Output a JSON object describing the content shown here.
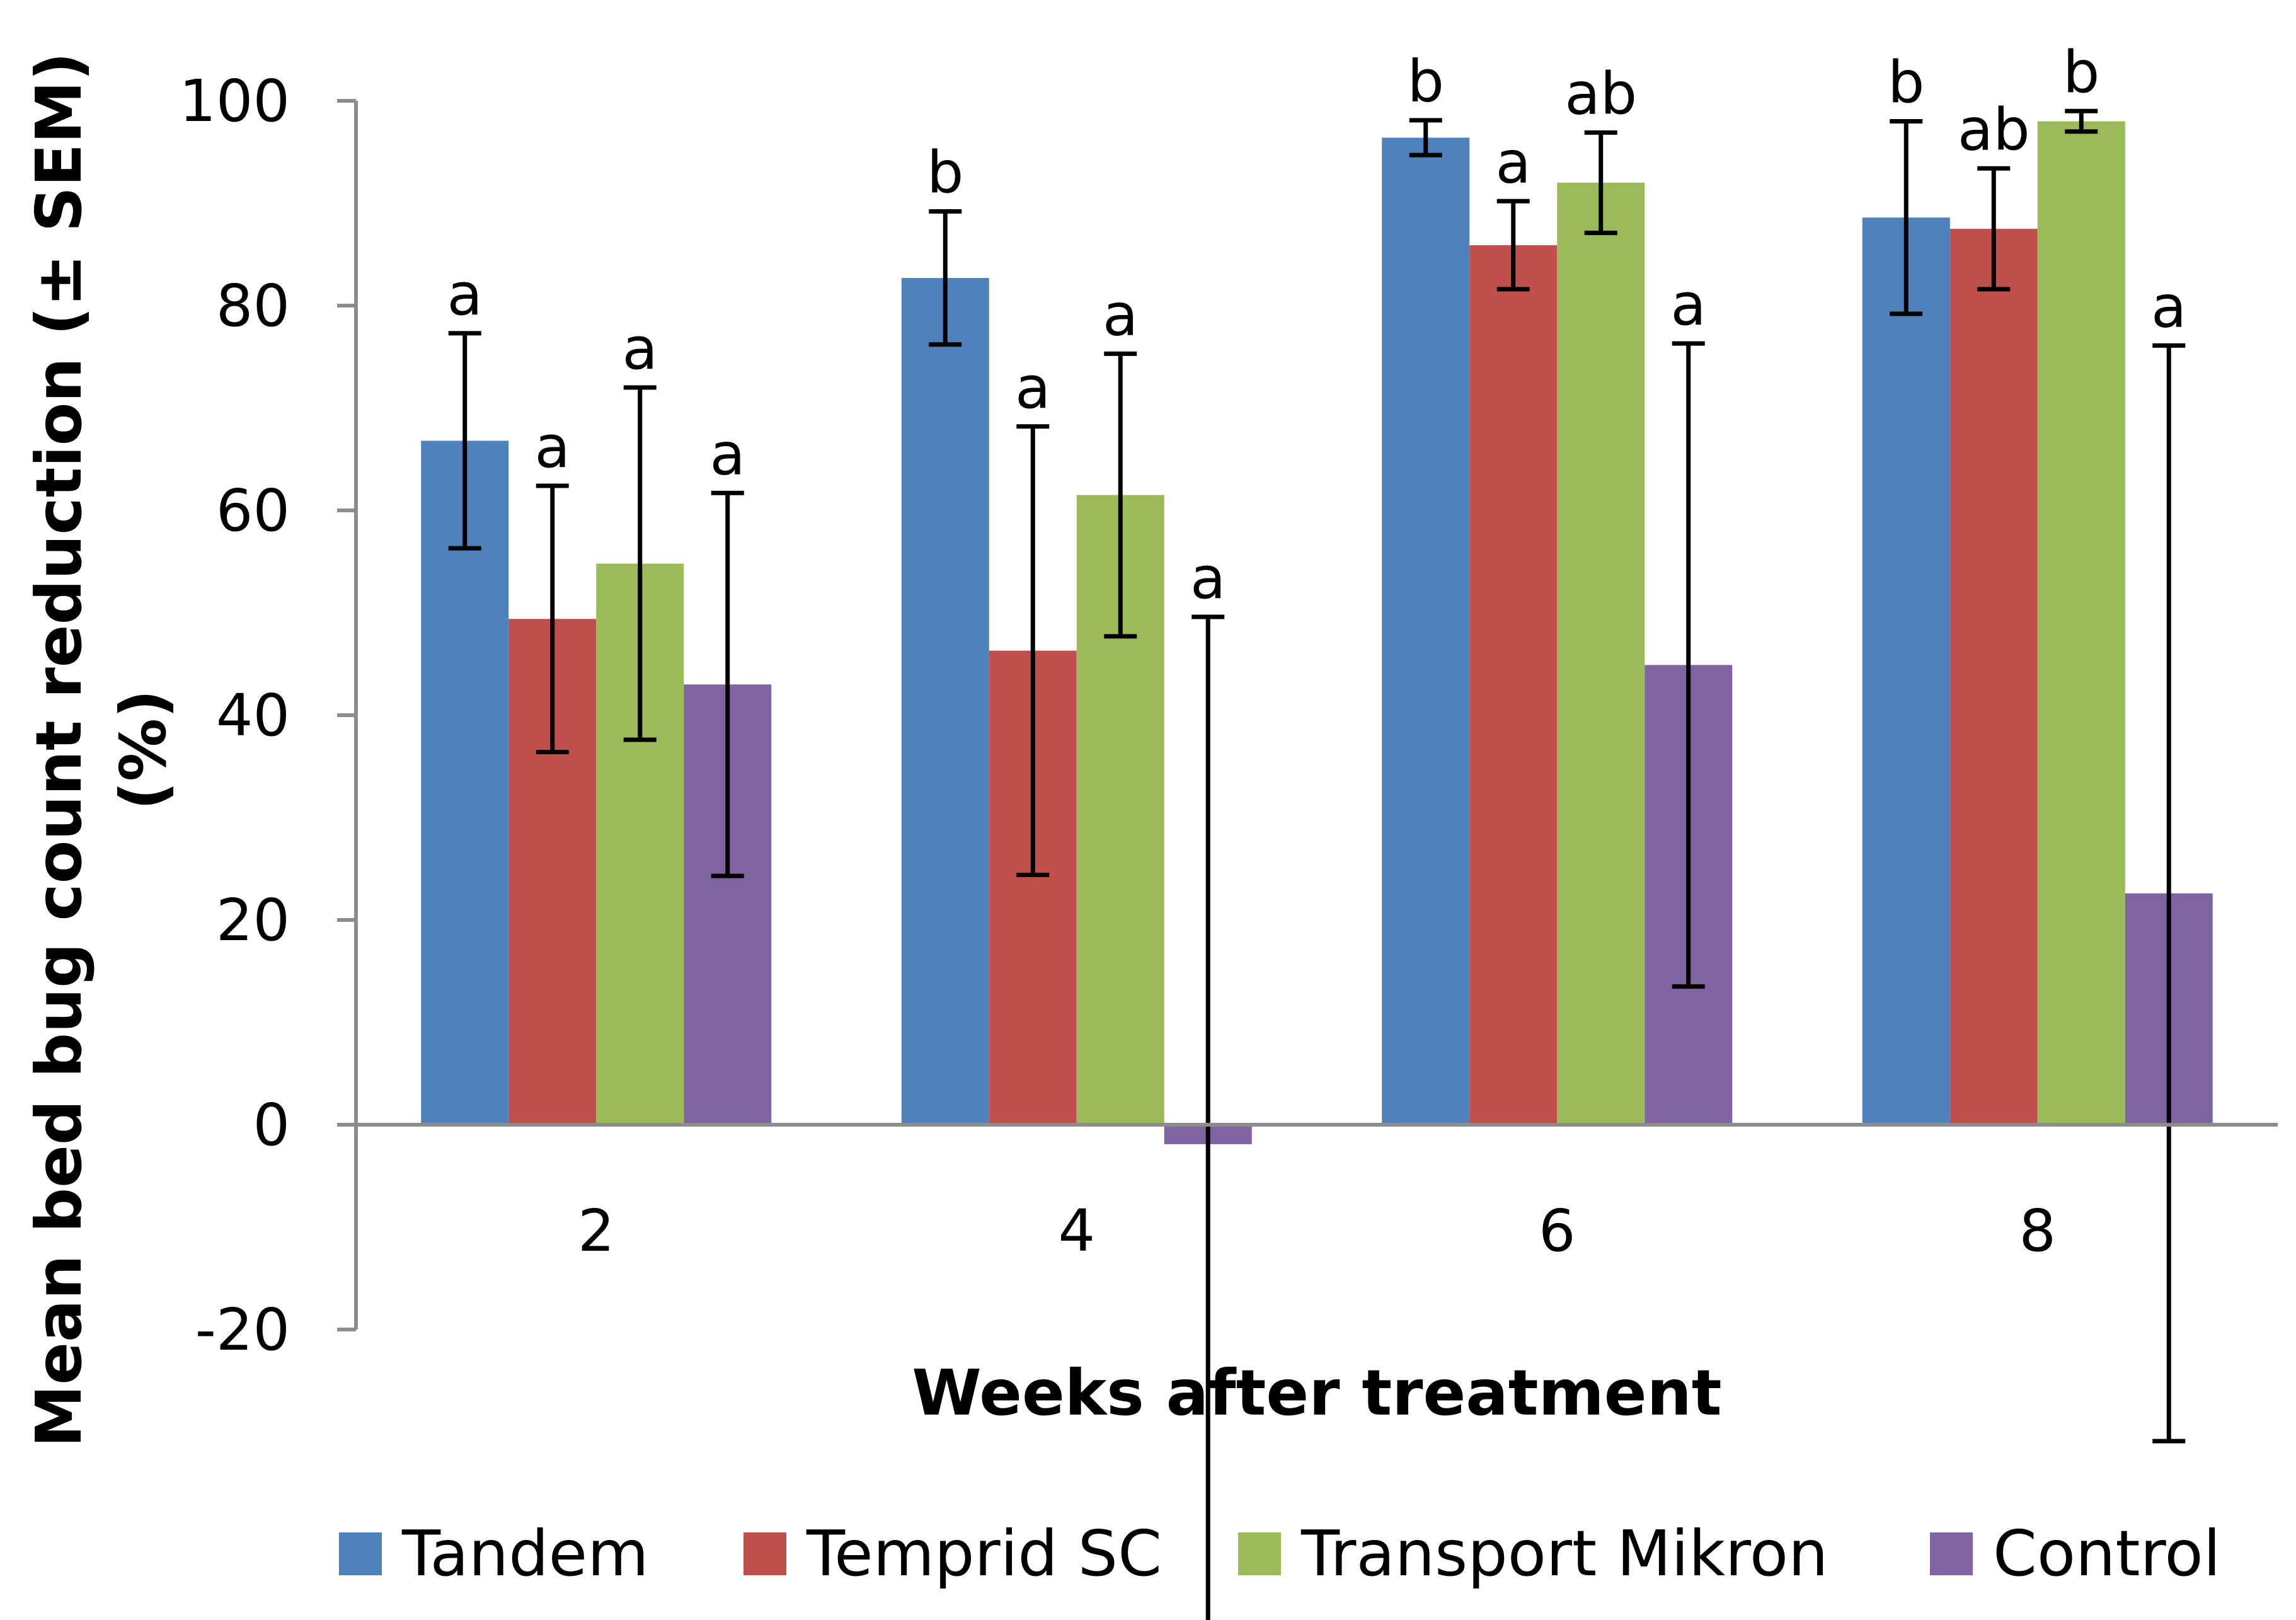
{
  "chart_data": {
    "type": "bar",
    "title": "",
    "xlabel": "Weeks after treatment",
    "ylabel": "Mean bed bug count  reduction (± SEM) (%)",
    "ylabel_lines": [
      "Mean bed bug count  reduction (± SEM)",
      "(%)"
    ],
    "ylim": [
      -20,
      100
    ],
    "yticks": [
      -20,
      0,
      20,
      40,
      60,
      80,
      100
    ],
    "ytick_labels": [
      "-20",
      "0",
      "20",
      "40",
      "60",
      "80",
      "100"
    ],
    "categories": [
      "2",
      "4",
      "6",
      "8"
    ],
    "grid": false,
    "legend_position": "bottom",
    "series": [
      {
        "name": "Tandem",
        "color": "#4f81bd",
        "values": [
          66.8,
          82.7,
          96.4,
          88.6
        ],
        "error": [
          10.5,
          6.5,
          1.7,
          9.4
        ],
        "labels": [
          "a",
          "b",
          "b",
          "b"
        ]
      },
      {
        "name": "Temprid SC",
        "color": "#c0504d",
        "values": [
          49.4,
          46.3,
          85.9,
          87.5
        ],
        "error": [
          13.0,
          21.9,
          4.3,
          5.9
        ],
        "labels": [
          "a",
          "a",
          "a",
          "ab"
        ]
      },
      {
        "name": "Transport Mikron",
        "color": "#9bbb59",
        "values": [
          54.8,
          61.5,
          92.0,
          98.0
        ],
        "error": [
          17.2,
          13.8,
          4.9,
          1.0
        ],
        "labels": [
          "a",
          "a",
          "ab",
          "b"
        ]
      },
      {
        "name": "Control",
        "color": "#8064a2",
        "values": [
          43.0,
          -1.9,
          44.9,
          22.6
        ],
        "error": [
          18.7,
          51.5,
          31.4,
          53.5
        ],
        "labels": [
          "a",
          "a",
          "a",
          "a"
        ]
      }
    ]
  }
}
